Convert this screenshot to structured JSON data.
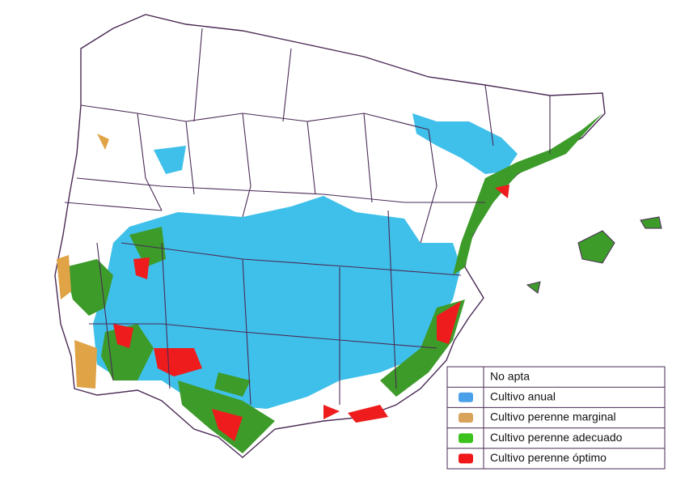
{
  "legend": {
    "items": [
      {
        "label": "No apta"
      },
      {
        "label": "Cultivo anual",
        "color": "#4aa0e8"
      },
      {
        "label": "Cultivo perenne marginal",
        "color": "#d9a35c"
      },
      {
        "label": "Cultivo perenne adecuado",
        "color": "#3cc21e"
      },
      {
        "label": "Cultivo perenne óptimo",
        "color": "#f01818"
      }
    ]
  }
}
